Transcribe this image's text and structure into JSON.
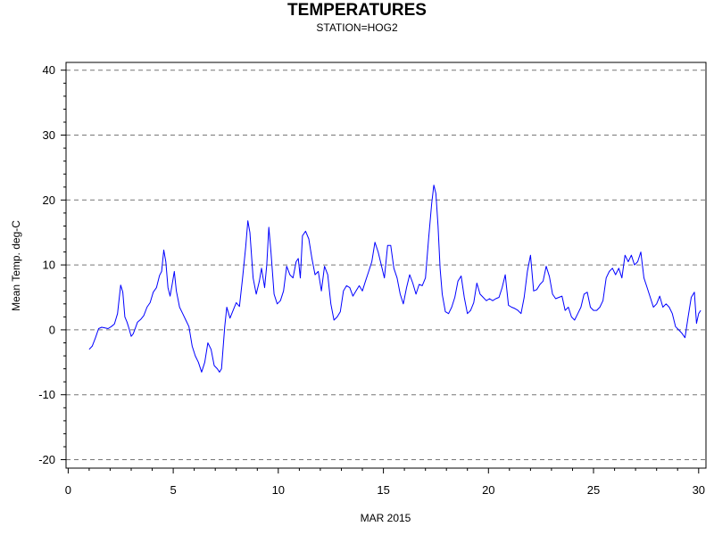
{
  "chart_data": {
    "type": "line",
    "title": "TEMPERATURES",
    "subtitle": "STATION=HOG2",
    "xlabel": "MAR 2015",
    "ylabel": "Mean Temp. deg-C",
    "xlim": [
      -0.1,
      30.35
    ],
    "ylim": [
      -21.3,
      41.2
    ],
    "x_ticks": [
      0,
      5,
      10,
      15,
      20,
      25,
      30
    ],
    "y_ticks": [
      -20,
      -10,
      0,
      10,
      20,
      30,
      40
    ],
    "grid": "horizontal-dashed",
    "series_color": "#0000ff",
    "series": [
      {
        "x": [
          1.0,
          1.15,
          1.3,
          1.45,
          1.6,
          1.75,
          1.9,
          2.05,
          2.2,
          2.35,
          2.5,
          2.6,
          2.7,
          2.8,
          2.9,
          3.0,
          3.1,
          3.2,
          3.3,
          3.45,
          3.6,
          3.75,
          3.9,
          4.05,
          4.2,
          4.35,
          4.45,
          4.55,
          4.65,
          4.75,
          4.85,
          4.95,
          5.05,
          5.15,
          5.3,
          5.45,
          5.6,
          5.75,
          5.9,
          6.05,
          6.2,
          6.35,
          6.5,
          6.65,
          6.8,
          6.95,
          7.1,
          7.2,
          7.3,
          7.45,
          7.55,
          7.7,
          7.85,
          8.0,
          8.15,
          8.3,
          8.45,
          8.55,
          8.65,
          8.8,
          8.95,
          9.1,
          9.2,
          9.35,
          9.45,
          9.55,
          9.65,
          9.8,
          9.95,
          10.1,
          10.25,
          10.4,
          10.55,
          10.7,
          10.85,
          10.95,
          11.05,
          11.15,
          11.3,
          11.45,
          11.6,
          11.75,
          11.9,
          12.05,
          12.2,
          12.35,
          12.5,
          12.65,
          12.8,
          12.95,
          13.1,
          13.25,
          13.4,
          13.55,
          13.7,
          13.85,
          14.0,
          14.15,
          14.3,
          14.45,
          14.6,
          14.75,
          14.9,
          15.05,
          15.2,
          15.35,
          15.5,
          15.65,
          15.8,
          15.95,
          16.1,
          16.25,
          16.4,
          16.55,
          16.7,
          16.85,
          17.0,
          17.15,
          17.3,
          17.4,
          17.5,
          17.6,
          17.7,
          17.8,
          17.95,
          18.1,
          18.25,
          18.4,
          18.55,
          18.7,
          18.85,
          19.0,
          19.15,
          19.3,
          19.45,
          19.6,
          19.75,
          19.9,
          20.05,
          20.2,
          20.35,
          20.5,
          20.65,
          20.8,
          20.95,
          21.1,
          21.25,
          21.4,
          21.55,
          21.7,
          21.85,
          22.0,
          22.15,
          22.3,
          22.45,
          22.6,
          22.75,
          22.9,
          23.05,
          23.2,
          23.35,
          23.5,
          23.65,
          23.8,
          23.95,
          24.1,
          24.25,
          24.4,
          24.55,
          24.7,
          24.85,
          25.0,
          25.15,
          25.3,
          25.45,
          25.6,
          25.75,
          25.9,
          26.05,
          26.2,
          26.35,
          26.5,
          26.65,
          26.8,
          26.95,
          27.1,
          27.25,
          27.4,
          27.55,
          27.7,
          27.85,
          28.0,
          28.15,
          28.3,
          28.45,
          28.6,
          28.75,
          28.9,
          29.05,
          29.2,
          29.35,
          29.5,
          29.65,
          29.8,
          29.9,
          30.0,
          30.1
        ],
        "values": [
          -3.0,
          -2.5,
          -1.2,
          0.2,
          0.4,
          0.3,
          0.2,
          0.5,
          0.9,
          2.5,
          6.9,
          5.8,
          2.0,
          1.2,
          0.2,
          -1.0,
          -0.6,
          0.3,
          1.2,
          1.6,
          2.2,
          3.5,
          4.2,
          5.8,
          6.5,
          8.4,
          9.0,
          12.3,
          10.5,
          6.5,
          5.2,
          7.0,
          9.0,
          6.0,
          3.5,
          2.5,
          1.5,
          0.5,
          -2.5,
          -4.0,
          -5.0,
          -6.5,
          -5.0,
          -2.0,
          -3.0,
          -5.5,
          -6.0,
          -6.5,
          -6.0,
          0.5,
          3.5,
          1.8,
          3.0,
          4.2,
          3.6,
          8.0,
          12.8,
          16.8,
          15.0,
          8.0,
          5.5,
          7.5,
          9.5,
          6.5,
          10.0,
          15.8,
          12.0,
          5.5,
          4.0,
          4.5,
          6.0,
          9.8,
          8.5,
          8.0,
          10.5,
          11.0,
          8.0,
          14.5,
          15.2,
          14.0,
          11.0,
          8.5,
          9.0,
          6.0,
          9.8,
          8.5,
          4.0,
          1.5,
          2.0,
          2.8,
          6.0,
          6.8,
          6.5,
          5.2,
          6.0,
          6.8,
          6.0,
          7.5,
          9.0,
          10.5,
          13.5,
          12.0,
          10.0,
          8.0,
          13.0,
          13.0,
          9.5,
          8.0,
          5.5,
          4.0,
          6.5,
          8.5,
          7.2,
          5.5,
          7.0,
          6.8,
          8.0,
          14.0,
          19.5,
          22.3,
          21.0,
          16.0,
          9.5,
          5.5,
          2.8,
          2.5,
          3.5,
          5.0,
          7.5,
          8.3,
          5.0,
          2.5,
          3.0,
          4.2,
          7.2,
          5.5,
          5.0,
          4.5,
          4.8,
          4.5,
          4.8,
          5.0,
          6.5,
          8.5,
          3.8,
          3.5,
          3.3,
          3.0,
          2.5,
          5.0,
          9.0,
          11.5,
          6.0,
          6.2,
          7.0,
          7.5,
          9.8,
          8.2,
          5.5,
          4.8,
          5.0,
          5.2,
          3.0,
          3.5,
          2.0,
          1.5,
          2.5,
          3.5,
          5.5,
          5.8,
          3.5,
          3.0,
          3.0,
          3.5,
          4.5,
          8.0,
          9.0,
          9.5,
          8.5,
          9.5,
          8.0,
          11.5,
          10.5,
          11.5,
          10.0,
          10.5,
          12.0,
          8.0,
          6.5,
          5.0,
          3.5,
          4.0,
          5.2,
          3.5,
          4.0,
          3.5,
          2.5,
          0.5,
          0.0,
          -0.5,
          -1.2,
          2.0,
          5.0,
          5.8,
          1.0,
          2.5,
          3.0
        ]
      }
    ]
  }
}
